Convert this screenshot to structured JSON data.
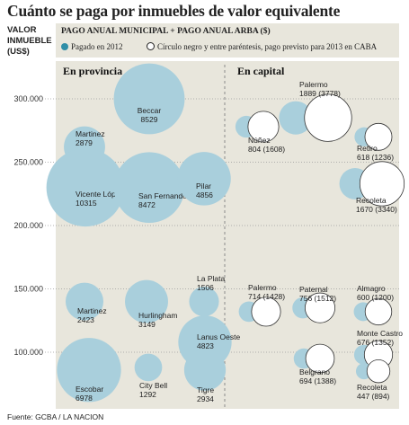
{
  "title": "Cuánto se paga por inmuebles de valor equivalente",
  "ylabel_lines": [
    "VALOR",
    "INMUEBLE",
    "(US$)"
  ],
  "subtitle": "PAGO ANUAL MUNICIPAL + PAGO ANUAL ARBA ($)",
  "legend": {
    "filled": "Pagado en 2012",
    "outline": "Círculo negro y entre paréntesis, pago previsto para 2013 en CABA"
  },
  "source": "Fuente: GCBA / LA NACION",
  "colors": {
    "panel": "#e8e6dc",
    "bubble": "#a9cfdc",
    "outline": "#333333",
    "legend_dot": "#2f8ea7"
  },
  "chart_data": {
    "type": "scatter",
    "ylabel": "VALOR INMUEBLE (US$)",
    "ylim": [
      80000,
      330000
    ],
    "yticks": [
      100000,
      150000,
      200000,
      250000,
      300000
    ],
    "ytick_labels": [
      "100.000",
      "150.000",
      "200.000",
      "250.000",
      "300.000"
    ],
    "grid": false,
    "legend_position": "top",
    "panels": [
      {
        "title": "En provincia",
        "points": [
          {
            "name": "Beccar",
            "value_label": "8529",
            "paid_2012": 8529,
            "y": 300000
          },
          {
            "name": "Martinez",
            "value_label": "2879",
            "paid_2012": 2879,
            "y": 262000
          },
          {
            "name": "Vicente López",
            "value_label": "10315",
            "paid_2012": 10315,
            "y": 230000
          },
          {
            "name": "San Fernando",
            "value_label": "8472",
            "paid_2012": 8472,
            "y": 230000
          },
          {
            "name": "Pilar",
            "value_label": "4856",
            "paid_2012": 4856,
            "y": 237000
          },
          {
            "name": "Martinez",
            "value_label": "2423",
            "paid_2012": 2423,
            "y": 140000
          },
          {
            "name": "Hurlingham",
            "value_label": "3149",
            "paid_2012": 3149,
            "y": 140000
          },
          {
            "name": "La Plata",
            "value_label": "1506",
            "paid_2012": 1506,
            "y": 140000
          },
          {
            "name": "Lanus Oeste",
            "value_label": "4823",
            "paid_2012": 4823,
            "y": 108000
          },
          {
            "name": "Escobar",
            "value_label": "6978",
            "paid_2012": 6978,
            "y": 86000
          },
          {
            "name": "City Bell",
            "value_label": "1292",
            "paid_2012": 1292,
            "y": 88000
          },
          {
            "name": "Tigre",
            "value_label": "2934",
            "paid_2012": 2934,
            "y": 86000
          }
        ]
      },
      {
        "title": "En capital",
        "points": [
          {
            "name": "Palermo",
            "value_label": "1889 (3778)",
            "paid_2012": 1889,
            "planned_2013": 3778,
            "y": 285000
          },
          {
            "name": "Núñez",
            "value_label": "804 (1608)",
            "paid_2012": 804,
            "planned_2013": 1608,
            "y": 278000
          },
          {
            "name": "Retiro",
            "value_label": "618 (1236)",
            "paid_2012": 618,
            "planned_2013": 1236,
            "y": 270000
          },
          {
            "name": "Recoleta",
            "value_label": "1670 (3340)",
            "paid_2012": 1670,
            "planned_2013": 3340,
            "y": 233000
          },
          {
            "name": "Palermo",
            "value_label": "714 (1428)",
            "paid_2012": 714,
            "planned_2013": 1428,
            "y": 132000
          },
          {
            "name": "Paternal",
            "value_label": "756 (1512)",
            "paid_2012": 756,
            "planned_2013": 1512,
            "y": 135000
          },
          {
            "name": "Almagro",
            "value_label": "600 (1200)",
            "paid_2012": 600,
            "planned_2013": 1200,
            "y": 132000
          },
          {
            "name": "Belgrano",
            "value_label": "694 (1388)",
            "paid_2012": 694,
            "planned_2013": 1388,
            "y": 95000
          },
          {
            "name": "Monte Castro",
            "value_label": "676 (1352)",
            "paid_2012": 676,
            "planned_2013": 1352,
            "y": 98000
          },
          {
            "name": "Recoleta",
            "value_label": "447 (894)",
            "paid_2012": 447,
            "planned_2013": 894,
            "y": 85000
          }
        ]
      }
    ]
  }
}
